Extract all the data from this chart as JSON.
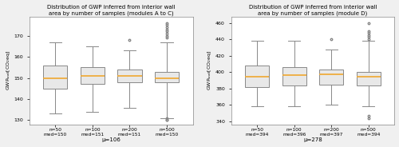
{
  "left_title": "Distribution of GWP inferred from interior wall\narea by number of samples (modules A to C)",
  "right_title": "Distribution of GWP inferred from interior wall\narea by number of samples (module D)",
  "left_ylabel": "GWP$_{wall}$[CO$_2$eq]",
  "right_ylabel": "GWP$_{wall}$[CO$_2$eq]",
  "left_xlabel": "μ=106",
  "right_xlabel": "μ=278",
  "left_ylim": [
    128,
    179
  ],
  "right_ylim": [
    336,
    468
  ],
  "left_yticks": [
    130,
    140,
    150,
    160,
    170
  ],
  "right_yticks": [
    340,
    360,
    380,
    400,
    420,
    440,
    460
  ],
  "x_labels": [
    "n=50\nmed=150",
    "n=100\nmed=151",
    "n=200\nmed=151",
    "n=500\nmed=150"
  ],
  "x_labels_right": [
    "n=50\nmed=394",
    "n=100\nmed=396",
    "n=200\nmed=397",
    "n=500\nmed=394"
  ],
  "left_boxes": [
    {
      "median": 150,
      "q1": 145,
      "q3": 156,
      "whislo": 133,
      "whishi": 167,
      "fliers_high": [],
      "fliers_low": []
    },
    {
      "median": 151,
      "q1": 147,
      "q3": 155,
      "whislo": 134,
      "whishi": 165,
      "fliers_high": [],
      "fliers_low": []
    },
    {
      "median": 151,
      "q1": 148,
      "q3": 154,
      "whislo": 136,
      "whishi": 163,
      "fliers_high": [
        168
      ],
      "fliers_low": []
    },
    {
      "median": 150,
      "q1": 148,
      "q3": 153,
      "whislo": 131,
      "whishi": 167,
      "fliers_high": [
        169,
        170,
        171,
        172,
        173,
        174,
        175,
        176
      ],
      "fliers_low": [
        130,
        130,
        131
      ]
    }
  ],
  "right_boxes": [
    {
      "median": 394,
      "q1": 382,
      "q3": 408,
      "whislo": 358,
      "whishi": 438,
      "fliers_high": [],
      "fliers_low": []
    },
    {
      "median": 396,
      "q1": 384,
      "q3": 406,
      "whislo": 358,
      "whishi": 438,
      "fliers_high": [],
      "fliers_low": []
    },
    {
      "median": 397,
      "q1": 385,
      "q3": 403,
      "whislo": 360,
      "whishi": 428,
      "fliers_high": [
        440
      ],
      "fliers_low": []
    },
    {
      "median": 394,
      "q1": 384,
      "q3": 400,
      "whislo": 358,
      "whishi": 438,
      "fliers_high": [
        440,
        443,
        445,
        448,
        450,
        460
      ],
      "fliers_low": [
        344,
        346
      ]
    }
  ],
  "median_color": "#f0a830",
  "box_facecolor": "#e8e8e8",
  "box_edgecolor": "#888888",
  "whisker_color": "#888888",
  "flier_color": "#888888",
  "background_color": "#ffffff",
  "fig_facecolor": "#f0f0f0"
}
